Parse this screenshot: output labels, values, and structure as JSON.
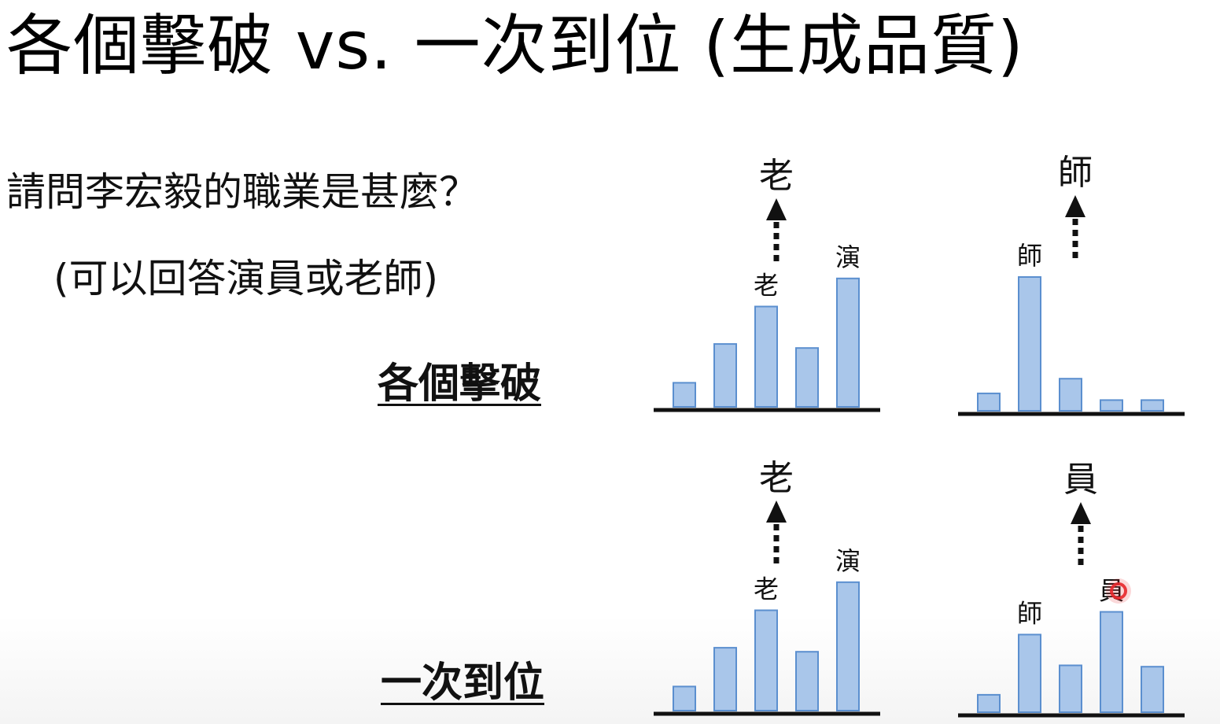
{
  "title": "各個擊破 vs. 一次到位 (生成品質)",
  "question": "請問李宏毅的職業是甚麼？",
  "hint": "(可以回答演員或老師)",
  "rows": [
    {
      "label": "各個擊破"
    },
    {
      "label": "一次到位"
    }
  ],
  "colors": {
    "bar_fill": "#a9c6ea",
    "bar_stroke": "#5b8fcf",
    "baseline": "#111111",
    "arrow": "#111111",
    "cursor": "#e8262a"
  },
  "chart_data": [
    {
      "type": "bar",
      "row": "各個擊破",
      "step": 1,
      "values": [
        0.18,
        0.47,
        0.75,
        0.44,
        0.96
      ],
      "bar_labels": [
        "",
        "",
        "老",
        "",
        "演"
      ],
      "output_token": "老"
    },
    {
      "type": "bar",
      "row": "各個擊破",
      "step": 2,
      "values": [
        0.13,
        1.0,
        0.24,
        0.08,
        0.08
      ],
      "bar_labels": [
        "",
        "師",
        "",
        "",
        ""
      ],
      "output_token": "師"
    },
    {
      "type": "bar",
      "row": "一次到位",
      "step": 1,
      "values": [
        0.18,
        0.47,
        0.75,
        0.44,
        0.96
      ],
      "bar_labels": [
        "",
        "",
        "老",
        "",
        "演"
      ],
      "output_token": "老"
    },
    {
      "type": "bar",
      "row": "一次到位",
      "step": 2,
      "values": [
        0.13,
        0.58,
        0.35,
        0.75,
        0.34
      ],
      "bar_labels": [
        "",
        "師",
        "",
        "員",
        ""
      ],
      "output_token": "員"
    }
  ]
}
